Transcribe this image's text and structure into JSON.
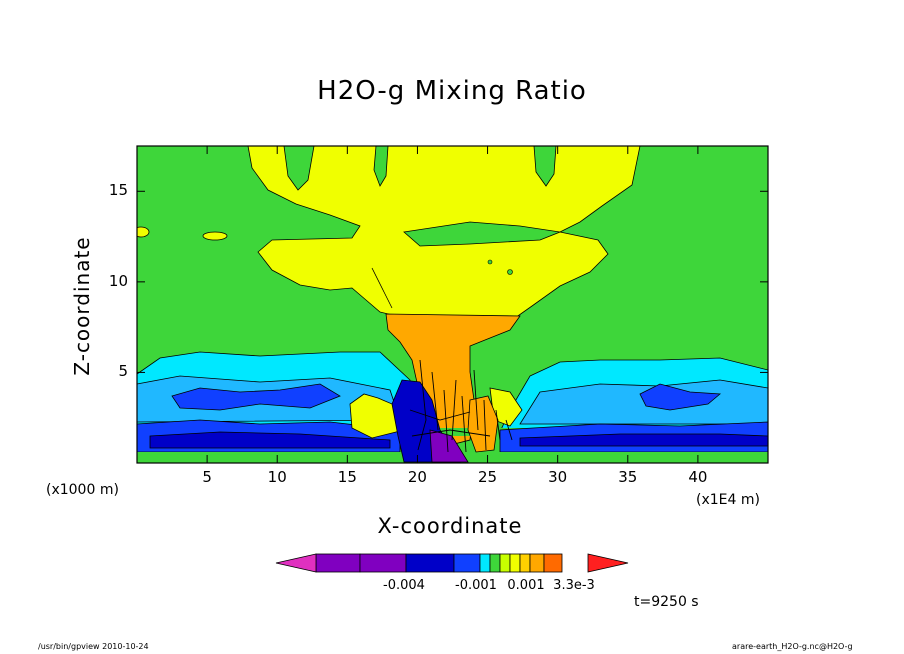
{
  "title": "H2O-g Mixing Ratio",
  "time_label": "t=9250 s",
  "footer": {
    "left": "/usr/bin/gpview   2010-10-24",
    "right": "arare-earth_H2O-g.nc@H2O-g"
  },
  "colors": {
    "green": "#3ed63a",
    "yellow": "#f0ff00",
    "orange": "#ffa800",
    "cyan": "#00e8ff",
    "sky": "#20b8ff",
    "blue": "#1040ff",
    "darkblue": "#0000c8",
    "purple": "#8000c0",
    "magenta": "#e030c0",
    "red": "#ff2020",
    "orangered": "#ff6a00"
  },
  "chart_data": {
    "type": "heatmap",
    "title": "H2O-g Mixing Ratio",
    "xlabel": "X-coordinate",
    "ylabel": "Z-coordinate",
    "x_unit_left": "(x1000 m)",
    "x_unit_right": "(x1E4 m)",
    "xlim": [
      0,
      45
    ],
    "ylim": [
      0,
      17.5
    ],
    "x_ticks": [
      5,
      10,
      15,
      20,
      25,
      30,
      35,
      40
    ],
    "y_ticks": [
      5,
      10,
      15
    ],
    "colorbar": {
      "labels": [
        "-0.004",
        "-0.001",
        "0.001",
        "3.3e-3"
      ],
      "colors": [
        "#e030c0",
        "#8000c0",
        "#8000c0",
        "#0000c8",
        "#1040ff",
        "#00e8ff",
        "#3ed63a",
        "#c8ff00",
        "#f0ff00",
        "#ffd000",
        "#ffa800",
        "#ff6a00",
        "#ff2020"
      ]
    }
  }
}
